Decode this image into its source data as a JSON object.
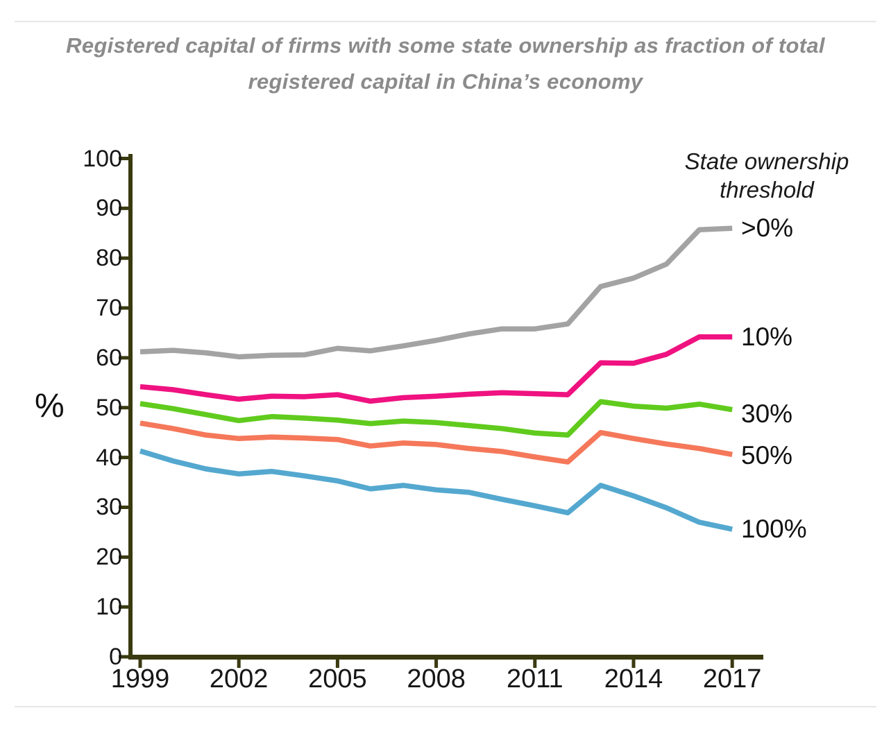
{
  "chart_data": {
    "type": "line",
    "title": "Registered capital of firms with some state ownership as fraction of total registered capital in China’s economy",
    "title_lines": [
      "Registered capital of firms with some state ownership as fraction of total",
      "registered capital in China’s economy"
    ],
    "xlabel": "",
    "ylabel": "%",
    "ylim": [
      0,
      100
    ],
    "grid": false,
    "axis_color": "#3a3a11",
    "tick_label_color": "#161616",
    "title_color": "#8b8b8b",
    "legend_title_lines": [
      "State ownership",
      "threshold"
    ],
    "legend_position": "right",
    "yticks": [
      0,
      10,
      20,
      30,
      40,
      50,
      60,
      70,
      80,
      90,
      100
    ],
    "xticks": [
      1999,
      2002,
      2005,
      2008,
      2011,
      2014,
      2017
    ],
    "x": [
      1999,
      2000,
      2001,
      2002,
      2003,
      2004,
      2005,
      2006,
      2007,
      2008,
      2009,
      2010,
      2011,
      2012,
      2013,
      2014,
      2015,
      2016,
      2017
    ],
    "series": [
      {
        "name": ">0%",
        "color": "#a3a3a3",
        "values": [
          61.2,
          61.5,
          61.0,
          60.2,
          60.5,
          60.6,
          61.9,
          61.4,
          62.4,
          63.5,
          64.8,
          65.8,
          65.8,
          66.8,
          74.3,
          76.0,
          78.8,
          85.7,
          86.0
        ]
      },
      {
        "name": "10%",
        "color": "#ef1280",
        "values": [
          54.2,
          53.6,
          52.6,
          51.7,
          52.3,
          52.2,
          52.6,
          51.3,
          52.0,
          52.3,
          52.7,
          53.0,
          52.8,
          52.6,
          59.0,
          58.9,
          60.7,
          64.2,
          64.2
        ]
      },
      {
        "name": "30%",
        "color": "#60cb1d",
        "values": [
          50.8,
          49.8,
          48.6,
          47.4,
          48.2,
          47.9,
          47.5,
          46.8,
          47.3,
          47.0,
          46.4,
          45.8,
          44.9,
          44.5,
          51.2,
          50.3,
          49.9,
          50.7,
          49.6
        ]
      },
      {
        "name": "50%",
        "color": "#f5785a",
        "values": [
          46.9,
          45.8,
          44.5,
          43.8,
          44.1,
          43.9,
          43.6,
          42.3,
          42.9,
          42.6,
          41.8,
          41.2,
          40.1,
          39.1,
          45.0,
          43.8,
          42.7,
          41.8,
          40.6
        ]
      },
      {
        "name": "100%",
        "color": "#54a8cf",
        "values": [
          41.3,
          39.3,
          37.7,
          36.7,
          37.2,
          36.3,
          35.3,
          33.7,
          34.4,
          33.5,
          33.0,
          31.6,
          30.3,
          28.9,
          34.4,
          32.3,
          29.9,
          27.0,
          25.6
        ]
      }
    ]
  }
}
